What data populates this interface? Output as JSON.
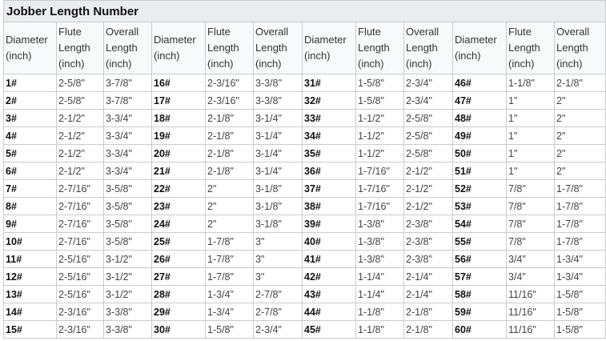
{
  "title": "Jobber Length Number",
  "headers": {
    "diameter": [
      "Diameter",
      "(inch)"
    ],
    "flute": [
      "Flute",
      "Length",
      "(inch)"
    ],
    "overall": [
      "Overall",
      "Length",
      "(inch)"
    ]
  },
  "rows": [
    [
      "1#",
      "2-5/8\"",
      "3-7/8\"",
      "16#",
      "2-3/16\"",
      "3-3/8\"",
      "31#",
      "1-5/8\"",
      "2-3/4\"",
      "46#",
      "1-1/8\"",
      "2-1/8\""
    ],
    [
      "2#",
      "2-5/8\"",
      "3-7/8\"",
      "17#",
      "2-3/16\"",
      "3-3/8\"",
      "32#",
      "1-5/8\"",
      "2-3/4\"",
      "47#",
      "1\"",
      "2\""
    ],
    [
      "3#",
      "2-1/2\"",
      "3-3/4\"",
      "18#",
      "2-1/8\"",
      "3-1/4\"",
      "33#",
      "1-1/2\"",
      "2-5/8\"",
      "48#",
      "1\"",
      "2\""
    ],
    [
      "4#",
      "2-1/2\"",
      "3-3/4\"",
      "19#",
      "2-1/8\"",
      "3-1/4\"",
      "34#",
      "1-1/2\"",
      "2-5/8\"",
      "49#",
      "1\"",
      "2\""
    ],
    [
      "5#",
      "2-1/2\"",
      "3-3/4\"",
      "20#",
      "2-1/8\"",
      "3-1/4\"",
      "35#",
      "1-1/2\"",
      "2-5/8\"",
      "50#",
      "1\"",
      "2\""
    ],
    [
      "6#",
      "2-1/2\"",
      "3-3/4\"",
      "21#",
      "2-1/8\"",
      "3-1/4\"",
      "36#",
      "1-7/16\"",
      "2-1/2\"",
      "51#",
      "1\"",
      "2\""
    ],
    [
      "7#",
      "2-7/16\"",
      "3-5/8\"",
      "22#",
      "2\"",
      "3-1/8\"",
      "37#",
      "1-7/16\"",
      "2-1/2\"",
      "52#",
      "7/8\"",
      "1-7/8\""
    ],
    [
      "8#",
      "2-7/16\"",
      "3-5/8\"",
      "23#",
      "2\"",
      "3-1/8\"",
      "38#",
      "1-7/16\"",
      "2-1/2\"",
      "53#",
      "7/8\"",
      "1-7/8\""
    ],
    [
      "9#",
      "2-7/16\"",
      "3-5/8\"",
      "24#",
      "2\"",
      "3-1/8\"",
      "39#",
      "1-3/8\"",
      "2-3/8\"",
      "54#",
      "7/8\"",
      "1-7/8\""
    ],
    [
      "10#",
      "2-7/16\"",
      "3-5/8\"",
      "25#",
      "1-7/8\"",
      "3\"",
      "40#",
      "1-3/8\"",
      "2-3/8\"",
      "55#",
      "7/8\"",
      "1-7/8\""
    ],
    [
      "11#",
      "2-5/16\"",
      "3-1/2\"",
      "26#",
      "1-7/8\"",
      "3\"",
      "41#",
      "1-3/8\"",
      "2-3/8\"",
      "56#",
      "3/4\"",
      "1-3/4\""
    ],
    [
      "12#",
      "2-5/16\"",
      "3-1/2\"",
      "27#",
      "1-7/8\"",
      "3\"",
      "42#",
      "1-1/4\"",
      "2-1/4\"",
      "57#",
      "3/4\"",
      "1-3/4\""
    ],
    [
      "13#",
      "2-5/16\"",
      "3-1/2\"",
      "28#",
      "1-3/4\"",
      "2-7/8\"",
      "43#",
      "1-1/4\"",
      "2-1/4\"",
      "58#",
      "11/16\"",
      "1-5/8\""
    ],
    [
      "14#",
      "2-3/16\"",
      "3-3/8\"",
      "29#",
      "1-3/4\"",
      "2-7/8\"",
      "44#",
      "1-1/8\"",
      "2-1/8\"",
      "59#",
      "11/16\"",
      "1-5/8\""
    ],
    [
      "15#",
      "2-3/16\"",
      "3-3/8\"",
      "30#",
      "1-5/8\"",
      "2-3/4\"",
      "45#",
      "1-1/8\"",
      "2-1/8\"",
      "60#",
      "11/16\"",
      "1-5/8\""
    ]
  ]
}
